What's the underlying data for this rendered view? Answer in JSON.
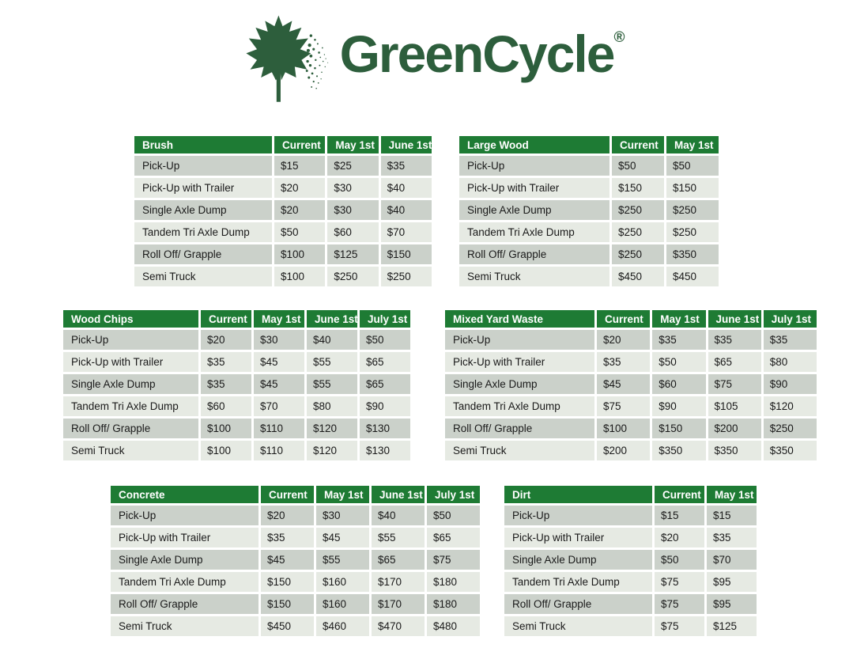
{
  "logo": {
    "brand": "GreenCycle",
    "registered_mark": "®",
    "icon": "maple-leaf-icon",
    "color": "#2d5e3c"
  },
  "colors": {
    "table_header_bg": "#1e7b34",
    "table_header_text": "#ffffff",
    "row_band_dark": "#cbd1ca",
    "row_band_light": "#e6eae3",
    "cell_text": "#1a1a1a",
    "logo_green": "#2d5e3c"
  },
  "tables": [
    {
      "id": "brush",
      "title": "Brush",
      "columns": [
        "Current",
        "May 1st",
        "June 1st"
      ],
      "rows": [
        {
          "label": "Pick-Up",
          "values": [
            "$15",
            "$25",
            "$35"
          ]
        },
        {
          "label": "Pick-Up with Trailer",
          "values": [
            "$20",
            "$30",
            "$40"
          ]
        },
        {
          "label": "Single Axle Dump",
          "values": [
            "$20",
            "$30",
            "$40"
          ]
        },
        {
          "label": "Tandem Tri Axle Dump",
          "values": [
            "$50",
            "$60",
            "$70"
          ]
        },
        {
          "label": "Roll Off/ Grapple",
          "values": [
            "$100",
            "$125",
            "$150"
          ]
        },
        {
          "label": "Semi Truck",
          "values": [
            "$100",
            "$250",
            "$250"
          ]
        }
      ]
    },
    {
      "id": "largewood",
      "title": "Large Wood",
      "columns": [
        "Current",
        "May 1st"
      ],
      "rows": [
        {
          "label": "Pick-Up",
          "values": [
            "$50",
            "$50"
          ]
        },
        {
          "label": "Pick-Up with Trailer",
          "values": [
            "$150",
            "$150"
          ]
        },
        {
          "label": "Single Axle Dump",
          "values": [
            "$250",
            "$250"
          ]
        },
        {
          "label": "Tandem Tri Axle Dump",
          "values": [
            "$250",
            "$250"
          ]
        },
        {
          "label": "Roll Off/ Grapple",
          "values": [
            "$250",
            "$350"
          ]
        },
        {
          "label": "Semi Truck",
          "values": [
            "$450",
            "$450"
          ]
        }
      ]
    },
    {
      "id": "woodchips",
      "title": "Wood Chips",
      "columns": [
        "Current",
        "May 1st",
        "June 1st",
        "July 1st"
      ],
      "rows": [
        {
          "label": "Pick-Up",
          "values": [
            "$20",
            "$30",
            "$40",
            "$50"
          ]
        },
        {
          "label": "Pick-Up with Trailer",
          "values": [
            "$35",
            "$45",
            "$55",
            "$65"
          ]
        },
        {
          "label": "Single Axle Dump",
          "values": [
            "$35",
            "$45",
            "$55",
            "$65"
          ]
        },
        {
          "label": "Tandem Tri Axle Dump",
          "values": [
            "$60",
            "$70",
            "$80",
            "$90"
          ]
        },
        {
          "label": "Roll Off/ Grapple",
          "values": [
            "$100",
            "$110",
            "$120",
            "$130"
          ]
        },
        {
          "label": "Semi Truck",
          "values": [
            "$100",
            "$110",
            "$120",
            "$130"
          ]
        }
      ]
    },
    {
      "id": "mixedyardwaste",
      "title": "Mixed Yard Waste",
      "columns": [
        "Current",
        "May 1st",
        "June 1st",
        "July 1st"
      ],
      "rows": [
        {
          "label": "Pick-Up",
          "values": [
            "$20",
            "$35",
            "$35",
            "$35"
          ]
        },
        {
          "label": "Pick-Up with Trailer",
          "values": [
            "$35",
            "$50",
            "$65",
            "$80"
          ]
        },
        {
          "label": "Single Axle Dump",
          "values": [
            "$45",
            "$60",
            "$75",
            "$90"
          ]
        },
        {
          "label": "Tandem Tri Axle Dump",
          "values": [
            "$75",
            "$90",
            "$105",
            "$120"
          ]
        },
        {
          "label": "Roll Off/ Grapple",
          "values": [
            "$100",
            "$150",
            "$200",
            "$250"
          ]
        },
        {
          "label": "Semi Truck",
          "values": [
            "$200",
            "$350",
            "$350",
            "$350"
          ]
        }
      ]
    },
    {
      "id": "concrete",
      "title": "Concrete",
      "columns": [
        "Current",
        "May 1st",
        "June 1st",
        "July 1st"
      ],
      "rows": [
        {
          "label": "Pick-Up",
          "values": [
            "$20",
            "$30",
            "$40",
            "$50"
          ]
        },
        {
          "label": "Pick-Up with Trailer",
          "values": [
            "$35",
            "$45",
            "$55",
            "$65"
          ]
        },
        {
          "label": "Single Axle Dump",
          "values": [
            "$45",
            "$55",
            "$65",
            "$75"
          ]
        },
        {
          "label": "Tandem Tri Axle Dump",
          "values": [
            "$150",
            "$160",
            "$170",
            "$180"
          ]
        },
        {
          "label": "Roll Off/ Grapple",
          "values": [
            "$150",
            "$160",
            "$170",
            "$180"
          ]
        },
        {
          "label": "Semi Truck",
          "values": [
            "$450",
            "$460",
            "$470",
            "$480"
          ]
        }
      ]
    },
    {
      "id": "dirt",
      "title": "Dirt",
      "columns": [
        "Current",
        "May 1st"
      ],
      "rows": [
        {
          "label": "Pick-Up",
          "values": [
            "$15",
            "$15"
          ]
        },
        {
          "label": "Pick-Up with Trailer",
          "values": [
            "$20",
            "$35"
          ]
        },
        {
          "label": "Single Axle Dump",
          "values": [
            "$50",
            "$70"
          ]
        },
        {
          "label": "Tandem Tri Axle Dump",
          "values": [
            "$75",
            "$95"
          ]
        },
        {
          "label": "Roll Off/ Grapple",
          "values": [
            "$75",
            "$95"
          ]
        },
        {
          "label": "Semi Truck",
          "values": [
            "$75",
            "$125"
          ]
        }
      ]
    }
  ]
}
